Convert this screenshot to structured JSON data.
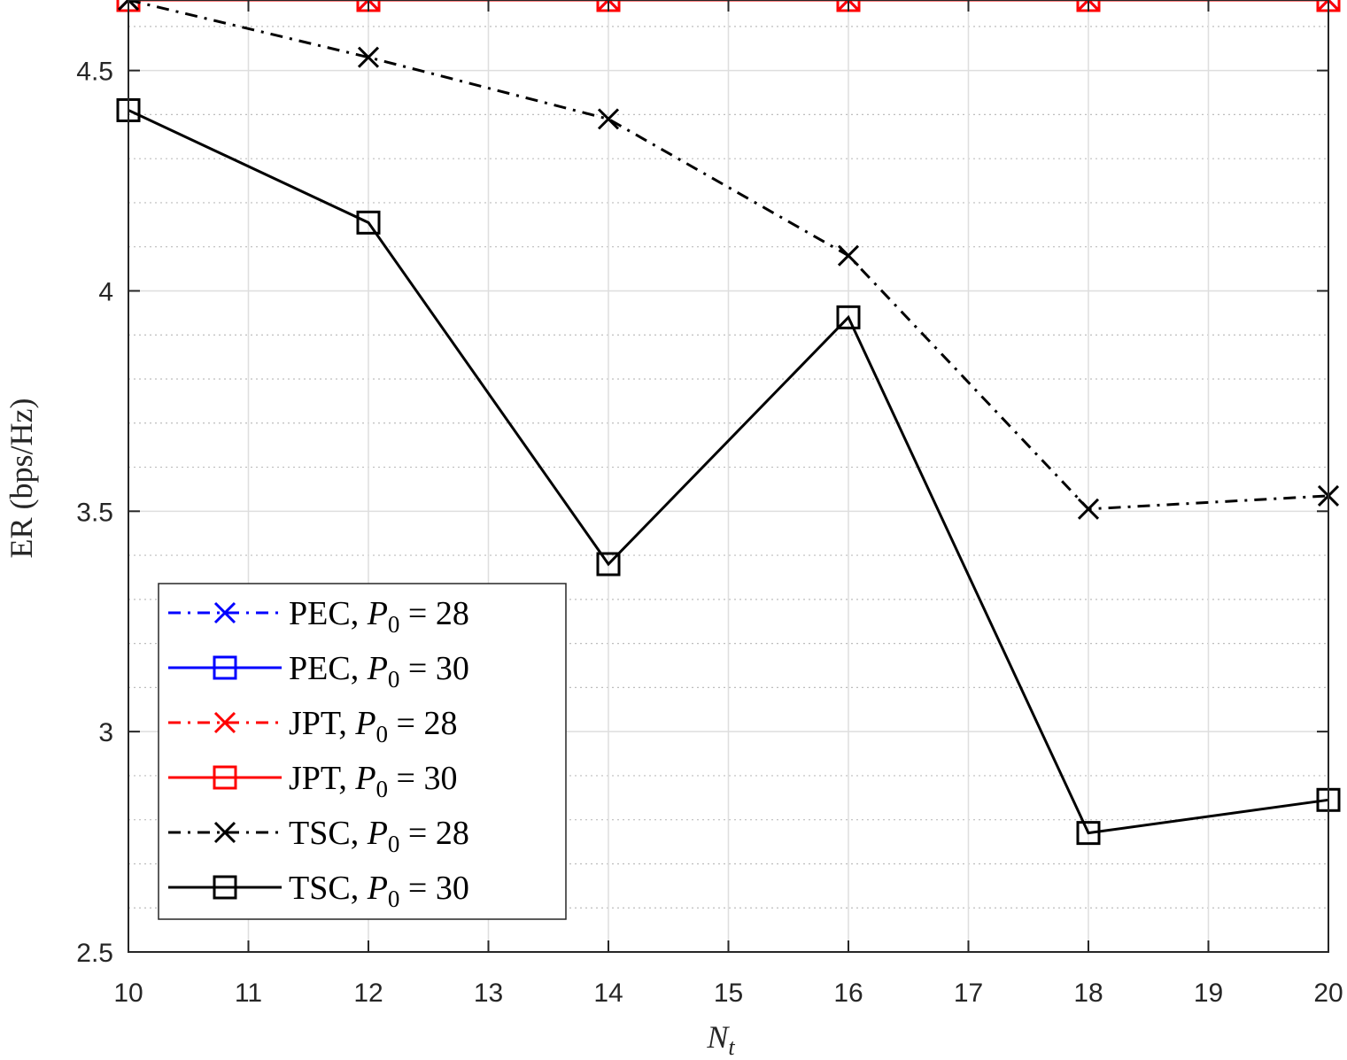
{
  "chart_data": {
    "type": "line",
    "xlabel_main": "N",
    "xlabel_sub": "t",
    "ylabel": "ER (bps/Hz)",
    "xlim": [
      10,
      20
    ],
    "ylim": [
      2.5,
      4.66
    ],
    "x_ticks": [
      "10",
      "11",
      "12",
      "13",
      "14",
      "15",
      "16",
      "17",
      "18",
      "19",
      "20"
    ],
    "y_ticks": [
      "2.5",
      "3",
      "3.5",
      "4",
      "4.5"
    ],
    "grid": true,
    "legend_position": "bottom-left",
    "x": [
      10,
      12,
      14,
      16,
      18,
      20
    ],
    "series": [
      {
        "label_prefix": "PEC, ",
        "label_var": "P",
        "label_sub": "0",
        "label_suffix": " = 28",
        "color": "#0000ff",
        "marker": "x",
        "dash": "dashdot",
        "values": [
          4.66,
          4.66,
          4.66,
          4.66,
          4.66,
          4.66
        ]
      },
      {
        "label_prefix": "PEC, ",
        "label_var": "P",
        "label_sub": "0",
        "label_suffix": " = 30",
        "color": "#0000ff",
        "marker": "square",
        "dash": "solid",
        "values": [
          4.66,
          4.66,
          4.66,
          4.66,
          4.66,
          4.66
        ]
      },
      {
        "label_prefix": "JPT, ",
        "label_var": "P",
        "label_sub": "0",
        "label_suffix": " = 28",
        "color": "#ff0000",
        "marker": "x",
        "dash": "dashdot",
        "values": [
          4.66,
          4.66,
          4.66,
          4.66,
          4.66,
          4.66
        ]
      },
      {
        "label_prefix": "JPT, ",
        "label_var": "P",
        "label_sub": "0",
        "label_suffix": " = 30",
        "color": "#ff0000",
        "marker": "square",
        "dash": "solid",
        "values": [
          4.66,
          4.66,
          4.66,
          4.66,
          4.66,
          4.66
        ]
      },
      {
        "label_prefix": "TSC, ",
        "label_var": "P",
        "label_sub": "0",
        "label_suffix": " = 28",
        "color": "#000000",
        "marker": "x",
        "dash": "dashdot",
        "values": [
          4.66,
          4.53,
          4.39,
          4.08,
          3.505,
          3.535
        ]
      },
      {
        "label_prefix": "TSC, ",
        "label_var": "P",
        "label_sub": "0",
        "label_suffix": " = 30",
        "color": "#000000",
        "marker": "square",
        "dash": "solid",
        "values": [
          4.41,
          4.155,
          3.38,
          3.94,
          2.77,
          2.845
        ]
      }
    ]
  }
}
